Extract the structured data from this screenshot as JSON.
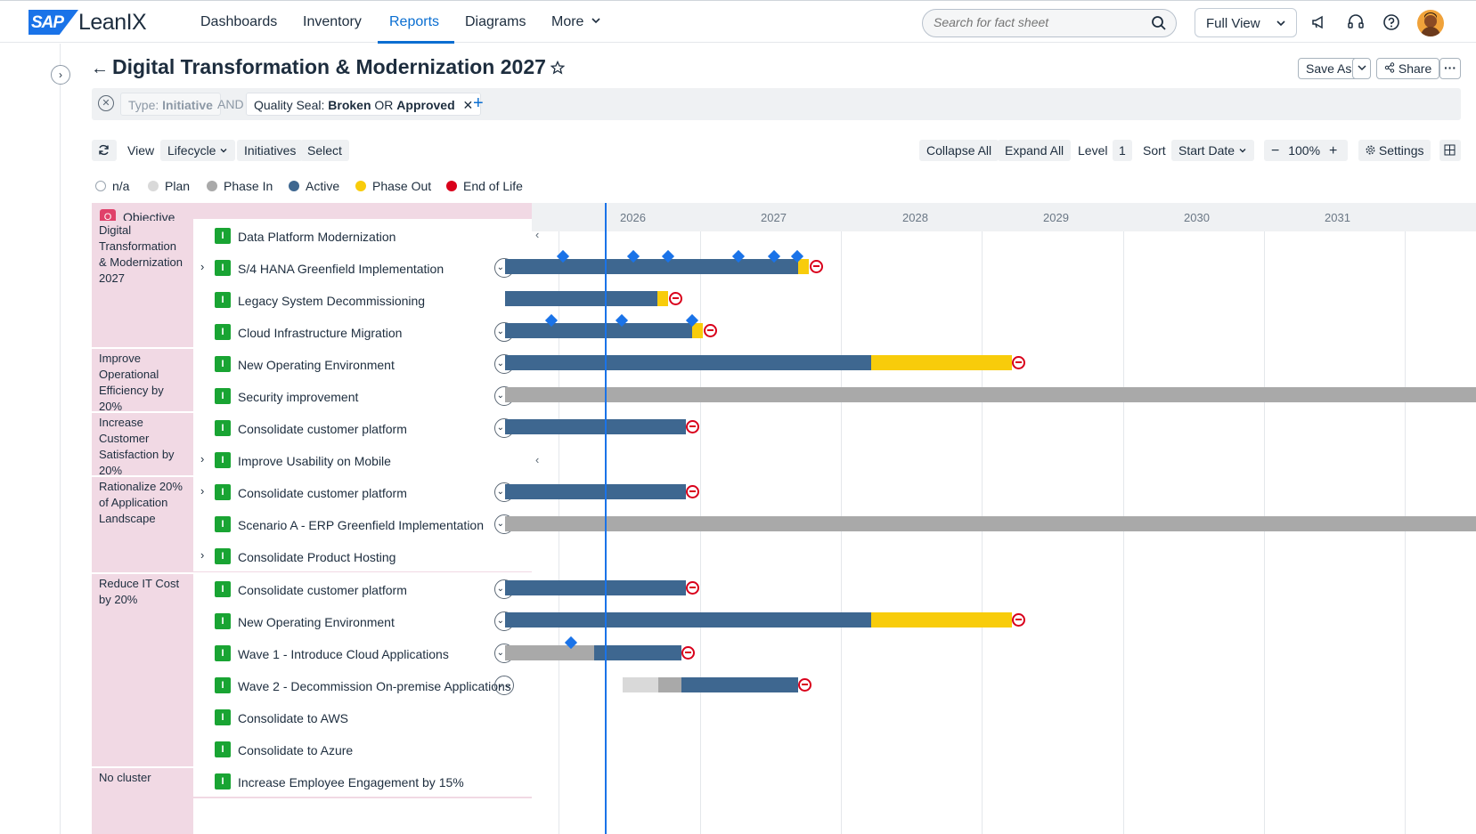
{
  "nav": {
    "logo_sap": "SAP",
    "logo_leanix": "LeanIX",
    "items": [
      "Dashboards",
      "Inventory",
      "Reports",
      "Diagrams",
      "More"
    ],
    "search_placeholder": "Search for fact sheet",
    "view_select": "Full View"
  },
  "header": {
    "title": "Digital Transformation & Modernization 2027",
    "save_as": "Save As",
    "share": "Share"
  },
  "filters": {
    "type_prefix": "Type: ",
    "type_value": "Initiative",
    "and": "AND",
    "quality_prefix": "Quality Seal: ",
    "quality_v1": "Broken",
    "quality_or": " OR ",
    "quality_v2": "Approved"
  },
  "toolbar": {
    "view_label": "View",
    "view_value": "Lifecycle",
    "initiatives_label": "Initiatives",
    "select_label": "Select",
    "collapse_all": "Collapse All",
    "expand_all": "Expand All",
    "level_label": "Level",
    "level_value": "1",
    "sort_label": "Sort",
    "sort_value": "Start Date",
    "zoom": "100%",
    "settings": "Settings"
  },
  "legend": [
    {
      "label": "n/a",
      "color": "#ffffff"
    },
    {
      "label": "Plan",
      "color": "#d9d9d9"
    },
    {
      "label": "Phase In",
      "color": "#a9a9a9"
    },
    {
      "label": "Active",
      "color": "#3e6790"
    },
    {
      "label": "Phase Out",
      "color": "#f8cc0b"
    },
    {
      "label": "End of Life",
      "color": "#d9001b"
    }
  ],
  "roadmap": {
    "objective_label": "Objective",
    "objective_badge": "O",
    "years": [
      "2026",
      "2027",
      "2028",
      "2029",
      "2030",
      "2031"
    ],
    "clusters": [
      "Digital Transformation & Modernization 2027",
      "Improve Operational Efficiency by 20%",
      "Increase Customer Satisfaction by 20%",
      "Rationalize 20% of Application Landscape",
      "Reduce IT Cost by 20%",
      "No cluster"
    ],
    "rows": [
      "Data Platform Modernization",
      "S/4 HANA Greenfield Implementation",
      "Legacy System Decommissioning",
      "Cloud Infrastructure Migration",
      "New Operating Environment",
      "Security improvement",
      "Consolidate customer platform",
      "Improve Usability on Mobile",
      "Consolidate customer platform",
      "Scenario A - ERP Greenfield Implementation",
      "Consolidate Product Hosting",
      "Consolidate customer platform",
      "New Operating Environment",
      "Wave 1 - Introduce Cloud Applications",
      "Wave 2 - Decommission On-premise Applications",
      "Consolidate to AWS",
      "Consolidate to Azure",
      "Increase Employee Engagement by 15%"
    ],
    "initiative_badge": "I"
  }
}
